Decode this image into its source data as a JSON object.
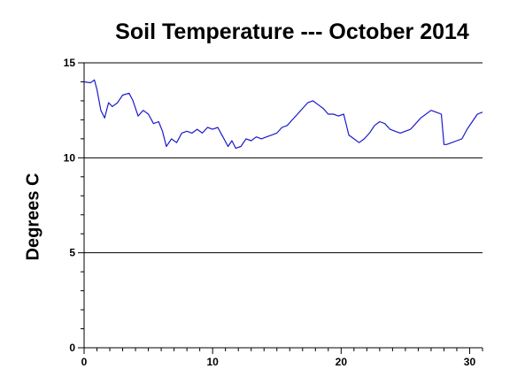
{
  "chart_data": {
    "type": "line",
    "title": "Soil Temperature --- October 2014",
    "xlabel": "",
    "ylabel": "Degrees C",
    "xlim": [
      0,
      31
    ],
    "ylim": [
      0,
      15
    ],
    "x_ticks": [
      0,
      10,
      20,
      30
    ],
    "y_ticks": [
      0,
      5,
      10,
      15
    ],
    "grid": "horizontal",
    "colors": {
      "series": "#1a1acc",
      "axis": "#000000",
      "grid": "#000000"
    },
    "series": [
      {
        "x": [
          0,
          0.5,
          0.8,
          1.0,
          1.3,
          1.6,
          1.9,
          2.2,
          2.6,
          3.0,
          3.5,
          3.8,
          4.2,
          4.6,
          5.0,
          5.4,
          5.8,
          6.1,
          6.4,
          6.8,
          7.2,
          7.6,
          8.0,
          8.4,
          8.8,
          9.2,
          9.6,
          10.0,
          10.4,
          10.8,
          11.2,
          11.5,
          11.8,
          12.2,
          12.6,
          13.0,
          13.4,
          13.8,
          14.2,
          14.6,
          15.0,
          15.4,
          15.8,
          16.2,
          16.6,
          17.0,
          17.4,
          17.8,
          18.2,
          18.6,
          19.0,
          19.4,
          19.8,
          20.2,
          20.6,
          21.0,
          21.4,
          21.8,
          22.2,
          22.6,
          23.0,
          23.4,
          23.8,
          24.2,
          24.6,
          25.0,
          25.4,
          25.8,
          26.2,
          26.6,
          27.0,
          27.4,
          27.8,
          28.0,
          28.2,
          28.6,
          29.0,
          29.4,
          29.8,
          30.2,
          30.6,
          31.0
        ],
        "values": [
          14.0,
          13.95,
          14.1,
          13.6,
          12.5,
          12.1,
          12.9,
          12.7,
          12.9,
          13.3,
          13.4,
          13.0,
          12.2,
          12.5,
          12.3,
          11.8,
          11.9,
          11.4,
          10.6,
          11.0,
          10.8,
          11.3,
          11.4,
          11.3,
          11.5,
          11.3,
          11.6,
          11.5,
          11.6,
          11.1,
          10.6,
          10.9,
          10.5,
          10.6,
          11.0,
          10.9,
          11.1,
          11.0,
          11.1,
          11.2,
          11.3,
          11.6,
          11.7,
          12.0,
          12.3,
          12.6,
          12.9,
          13.0,
          12.8,
          12.6,
          12.3,
          12.3,
          12.2,
          12.3,
          11.2,
          11.0,
          10.8,
          11.0,
          11.3,
          11.7,
          11.9,
          11.8,
          11.5,
          11.4,
          11.3,
          11.4,
          11.5,
          11.8,
          12.1,
          12.3,
          12.5,
          12.4,
          12.3,
          10.7,
          10.7,
          10.8,
          10.9,
          11.0,
          11.5,
          11.9,
          12.3,
          12.4
        ]
      }
    ]
  }
}
